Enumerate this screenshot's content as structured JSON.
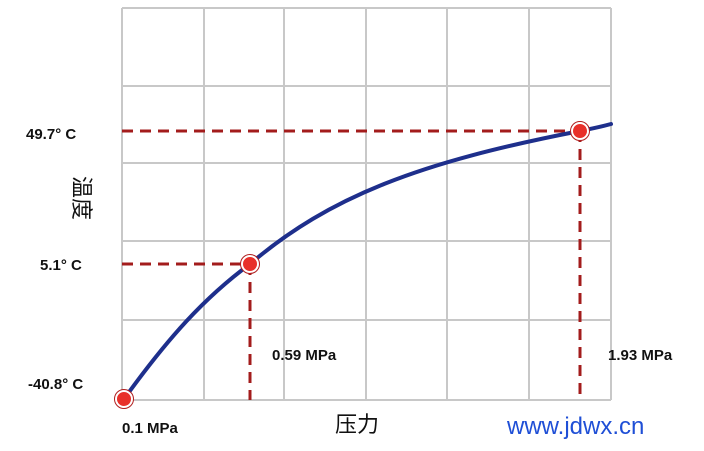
{
  "chart_data": {
    "type": "line",
    "xlabel": "压力",
    "ylabel": "温度",
    "x_unit": "MPa",
    "y_unit": "°C",
    "points": [
      {
        "x": 0.1,
        "y": -40.8,
        "x_label": "0.1 MPa",
        "y_label": "-40.8° C"
      },
      {
        "x": 0.59,
        "y": 5.1,
        "x_label": "0.59 MPa",
        "y_label": "5.1° C"
      },
      {
        "x": 1.93,
        "y": 49.7,
        "x_label": "1.93 MPa",
        "y_label": "49.7° C"
      }
    ],
    "grid": true,
    "colors": {
      "curve": "#1e2f8c",
      "guide": "#a31c1c",
      "marker_fill": "#e8302a",
      "grid": "#c8c8c8"
    }
  },
  "watermark": "www.jdwx.cn"
}
